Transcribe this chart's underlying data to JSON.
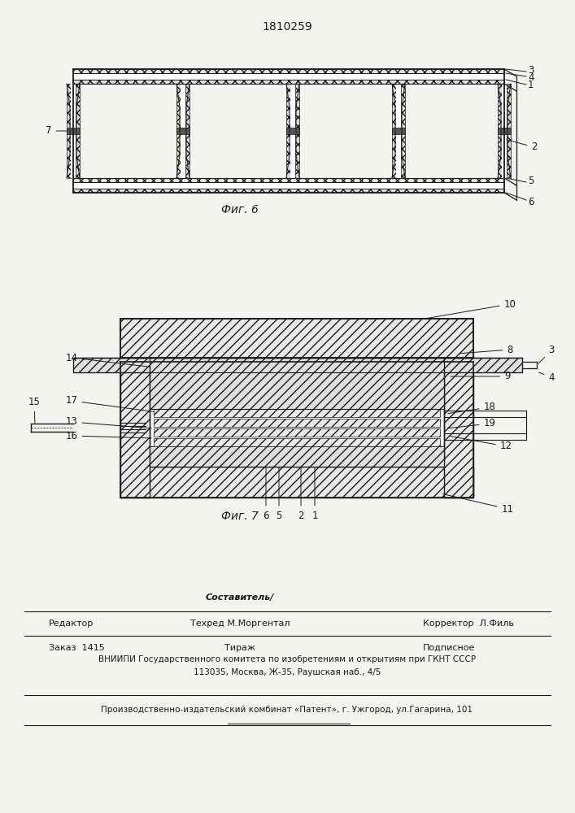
{
  "patent_number": "1810259",
  "fig6_caption": "Фиг. 6",
  "fig7_caption": "Фиг. 7",
  "background_color": "#f5f3f0",
  "line_color": "#1a1a1a",
  "label_fontsize": 8.5,
  "caption_fontsize": 10,
  "patent_fontsize": 10,
  "footer_sestavitel": "Составитель/",
  "footer_editor": "Редактор",
  "footer_tech": "Техред М.Моргентал",
  "footer_corrector": "Корректор  Л.Филь",
  "footer_order": "Заказ  1415",
  "footer_tirazh": "Тираж",
  "footer_podpisnoe": "Подписное",
  "footer_vnipi": "ВНИИПИ Государственного комитета по изобретениям и открытиям при ГКНТ СССР",
  "footer_address": "113035, Москва, Ж-35, Раушская наб., 4/5",
  "footer_patent": "Производственно-издательский комбинат «Патент», г. Ужгород, ул.Гагарина, 101"
}
